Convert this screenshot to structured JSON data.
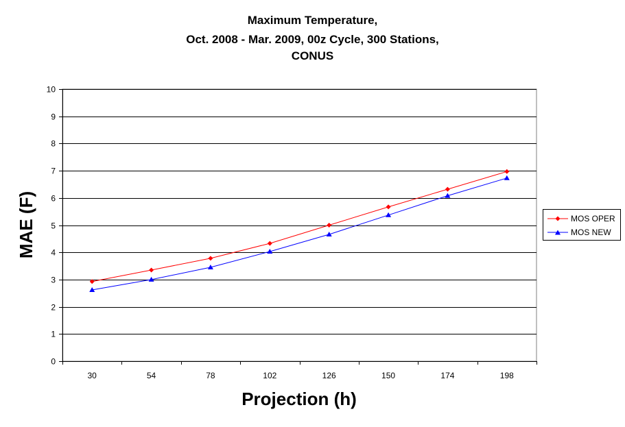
{
  "chart_data": {
    "type": "line",
    "title_lines": [
      "Maximum Temperature,",
      "Oct. 2008 - Mar. 2009, 00z Cycle, 300 Stations,",
      "CONUS"
    ],
    "xlabel": "Projection (h)",
    "ylabel": "MAE (F)",
    "categories": [
      "30",
      "54",
      "78",
      "102",
      "126",
      "150",
      "174",
      "198"
    ],
    "ylim": [
      0,
      10
    ],
    "yticks": [
      "0",
      "1",
      "2",
      "3",
      "4",
      "5",
      "6",
      "7",
      "8",
      "9",
      "10"
    ],
    "grid": true,
    "legend_position": "right",
    "series": [
      {
        "name": "MOS OPER",
        "color": "#ff0000",
        "marker": "diamond",
        "values": [
          2.93,
          3.35,
          3.78,
          4.33,
          5.0,
          5.67,
          6.32,
          6.97
        ]
      },
      {
        "name": "MOS NEW",
        "color": "#0000ff",
        "marker": "triangle",
        "values": [
          2.62,
          3.0,
          3.45,
          4.03,
          4.66,
          5.37,
          6.08,
          6.73
        ]
      }
    ]
  }
}
